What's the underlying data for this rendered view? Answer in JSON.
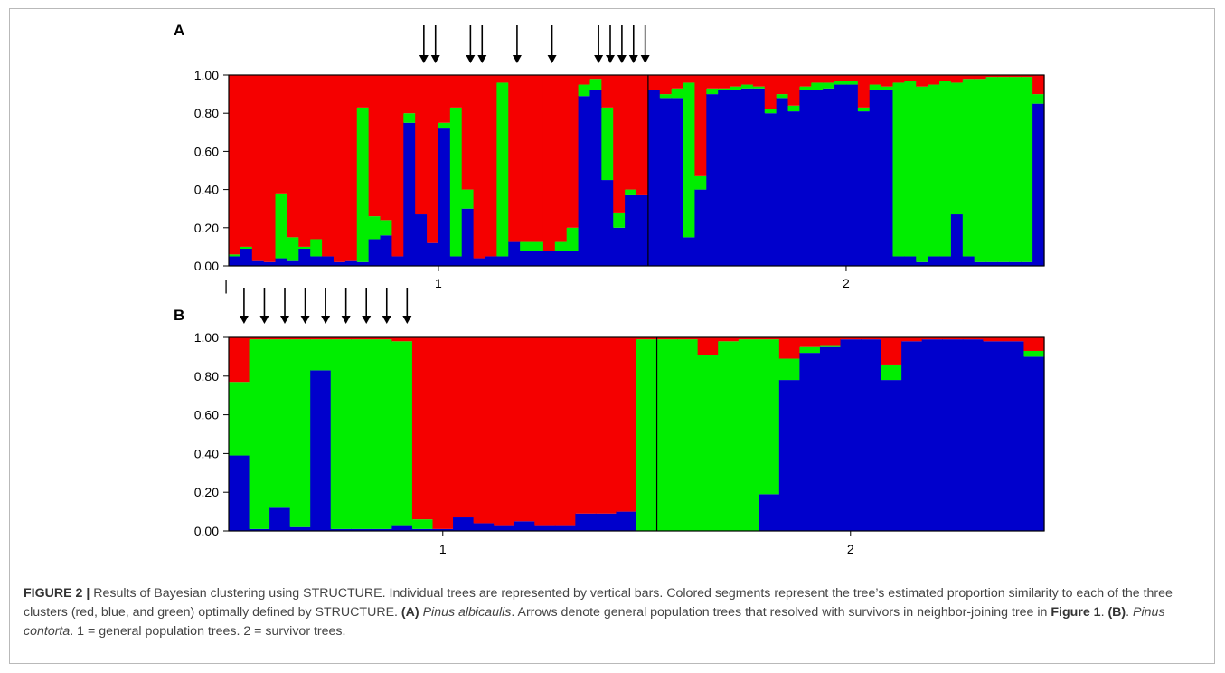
{
  "colors": {
    "red": "#f50000",
    "green": "#00ee00",
    "blue": "#0000cc",
    "frame": "#000000"
  },
  "chart_data": [
    {
      "type": "bar",
      "stacked": true,
      "panel": "A",
      "ylim": [
        0,
        1
      ],
      "yticks": [
        "0.00",
        "0.20",
        "0.40",
        "0.60",
        "0.80",
        "1.00"
      ],
      "groups": [
        {
          "label": "1",
          "count": 36
        },
        {
          "label": "2",
          "count": 34
        }
      ],
      "arrow_after_bars": [
        16,
        17,
        20,
        21,
        24,
        27,
        31,
        32,
        33,
        34,
        35
      ],
      "series": [
        {
          "name": "blue",
          "color": "blue",
          "values": [
            0.05,
            0.09,
            0.03,
            0.02,
            0.04,
            0.03,
            0.09,
            0.05,
            0.05,
            0.02,
            0.03,
            0.02,
            0.14,
            0.16,
            0.05,
            0.75,
            0.27,
            0.12,
            0.72,
            0.05,
            0.3,
            0.04,
            0.05,
            0.05,
            0.13,
            0.08,
            0.08,
            0.08,
            0.08,
            0.08,
            0.89,
            0.92,
            0.45,
            0.2,
            0.37,
            0.37,
            0.92,
            0.88,
            0.88,
            0.15,
            0.4,
            0.9,
            0.92,
            0.92,
            0.93,
            0.93,
            0.8,
            0.88,
            0.81,
            0.92,
            0.92,
            0.93,
            0.95,
            0.95,
            0.81,
            0.92,
            0.92,
            0.05,
            0.05,
            0.02,
            0.05,
            0.05,
            0.27,
            0.05,
            0.02,
            0.02,
            0.02,
            0.02,
            0.02,
            0.85
          ]
        },
        {
          "name": "green",
          "color": "green",
          "values": [
            0.01,
            0.01,
            0.0,
            0.0,
            0.34,
            0.12,
            0.01,
            0.09,
            0.0,
            0.0,
            0.0,
            0.81,
            0.12,
            0.08,
            0.0,
            0.05,
            0.0,
            0.0,
            0.03,
            0.78,
            0.1,
            0.0,
            0.0,
            0.91,
            0.0,
            0.05,
            0.05,
            0.0,
            0.05,
            0.12,
            0.06,
            0.06,
            0.38,
            0.08,
            0.03,
            0.0,
            0.0,
            0.02,
            0.05,
            0.81,
            0.07,
            0.03,
            0.01,
            0.02,
            0.02,
            0.01,
            0.02,
            0.02,
            0.03,
            0.02,
            0.04,
            0.03,
            0.02,
            0.02,
            0.02,
            0.03,
            0.02,
            0.91,
            0.92,
            0.92,
            0.9,
            0.92,
            0.69,
            0.93,
            0.96,
            0.97,
            0.97,
            0.97,
            0.97,
            0.05
          ]
        },
        {
          "name": "red",
          "color": "red",
          "values": [
            0.94,
            0.9,
            0.97,
            0.98,
            0.62,
            0.85,
            0.9,
            0.86,
            0.95,
            0.98,
            0.97,
            0.17,
            0.74,
            0.76,
            0.95,
            0.2,
            0.73,
            0.88,
            0.25,
            0.17,
            0.6,
            0.96,
            0.95,
            0.04,
            0.87,
            0.87,
            0.87,
            0.92,
            0.87,
            0.8,
            0.05,
            0.02,
            0.17,
            0.72,
            0.6,
            0.63,
            0.08,
            0.1,
            0.07,
            0.04,
            0.53,
            0.07,
            0.07,
            0.06,
            0.05,
            0.06,
            0.18,
            0.1,
            0.16,
            0.06,
            0.04,
            0.04,
            0.03,
            0.03,
            0.17,
            0.05,
            0.06,
            0.04,
            0.03,
            0.06,
            0.05,
            0.03,
            0.04,
            0.02,
            0.02,
            0.01,
            0.01,
            0.01,
            0.01,
            0.1
          ]
        }
      ]
    },
    {
      "type": "bar",
      "stacked": true,
      "panel": "B",
      "ylim": [
        0,
        1
      ],
      "yticks": [
        "0.00",
        "0.20",
        "0.40",
        "0.60",
        "0.80",
        "1.00"
      ],
      "groups": [
        {
          "label": "1",
          "count": 21
        },
        {
          "label": "2",
          "count": 19
        }
      ],
      "arrow_after_bars": [
        0,
        1,
        2,
        3,
        4,
        5,
        6,
        7,
        8
      ],
      "series": [
        {
          "name": "blue",
          "color": "blue",
          "values": [
            0.39,
            0.01,
            0.12,
            0.02,
            0.83,
            0.01,
            0.01,
            0.01,
            0.03,
            0.01,
            0.01,
            0.07,
            0.04,
            0.03,
            0.05,
            0.03,
            0.03,
            0.09,
            0.09,
            0.1,
            0.0,
            0.0,
            0.0,
            0.0,
            0.0,
            0.0,
            0.19,
            0.78,
            0.92,
            0.95,
            0.99,
            0.99,
            0.78,
            0.98,
            0.99,
            0.99,
            0.99,
            0.98,
            0.98,
            0.9
          ]
        },
        {
          "name": "green",
          "color": "green",
          "values": [
            0.38,
            0.98,
            0.87,
            0.97,
            0.16,
            0.98,
            0.98,
            0.98,
            0.95,
            0.05,
            0.0,
            0.0,
            0.0,
            0.0,
            0.0,
            0.0,
            0.0,
            0.0,
            0.0,
            0.0,
            0.99,
            0.99,
            0.99,
            0.91,
            0.98,
            0.99,
            0.8,
            0.11,
            0.03,
            0.01,
            0.0,
            0.0,
            0.08,
            0.0,
            0.0,
            0.0,
            0.0,
            0.0,
            0.0,
            0.03
          ]
        },
        {
          "name": "red",
          "color": "red",
          "values": [
            0.23,
            0.01,
            0.01,
            0.01,
            0.01,
            0.01,
            0.01,
            0.01,
            0.02,
            0.94,
            0.99,
            0.93,
            0.96,
            0.97,
            0.95,
            0.97,
            0.97,
            0.91,
            0.91,
            0.9,
            0.01,
            0.01,
            0.01,
            0.09,
            0.02,
            0.01,
            0.01,
            0.11,
            0.05,
            0.04,
            0.01,
            0.01,
            0.14,
            0.02,
            0.01,
            0.01,
            0.01,
            0.02,
            0.02,
            0.07
          ]
        }
      ]
    }
  ],
  "panels": {
    "a_label": "A",
    "b_label": "B"
  },
  "stray_mark": "|",
  "caption": {
    "fig_num": "FIGURE 2 |",
    "t1": " Results of Bayesian clustering using STRUCTURE. Individual trees are represented by vertical bars. Colored segments represent the tree’s estimated proportion similarity to each of the three clusters (red, blue, and green) optimally defined by STRUCTURE. ",
    "a_tag": "(A)",
    "species_a": "Pinus albicaulis",
    "t2": ". Arrows denote general population trees that resolved with survivors in neighbor-joining tree in ",
    "fig_ref": "Figure 1",
    "t3": ". ",
    "b_tag": "(B)",
    "t4": ". ",
    "species_b": "Pinus contorta",
    "t5": ". 1 = general population trees. 2 = survivor trees."
  }
}
